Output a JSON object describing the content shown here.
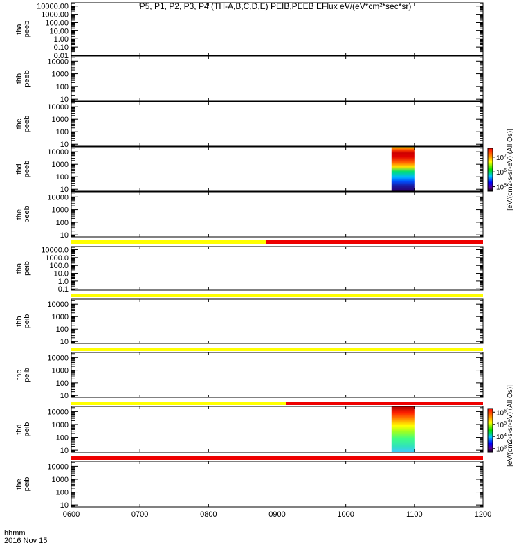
{
  "title": "P5, P1, P2, P3, P4 (TH-A,B,C,D,E) PEIB,PEEB EFlux eV/(eV*cm²*sec*sr)",
  "x_axis": {
    "ticks": [
      "0600",
      "0700",
      "0800",
      "0900",
      "1000",
      "1100",
      "1200"
    ],
    "label_line1": "hhmm",
    "label_line2": "2016 Nov 15"
  },
  "colorbars": [
    {
      "label": "[eV/(cm2-s-sr-eV) (All Qs)]",
      "ticks": [
        {
          "base": "10",
          "exp": "7",
          "value": 10000000
        },
        {
          "base": "10",
          "exp": "6",
          "value": 1000000
        },
        {
          "base": "10",
          "exp": "5",
          "value": 100000
        }
      ],
      "range": [
        50000,
        40000000
      ]
    },
    {
      "label": "[eV/(cm2-s-sr-eV) (All Qs)]",
      "ticks": [
        {
          "base": "10",
          "exp": "6",
          "value": 1000000
        },
        {
          "base": "10",
          "exp": "5",
          "value": 100000
        },
        {
          "base": "10",
          "exp": "4",
          "value": 10000
        },
        {
          "base": "10",
          "exp": "3",
          "value": 1000
        }
      ],
      "range": [
        500,
        2000000
      ]
    }
  ],
  "colors": {
    "flag_yellow": "#ffff00",
    "flag_red": "#ee0000"
  },
  "chart_data": [
    {
      "type": "heatmap",
      "probe": "tha",
      "product": "peeb",
      "ylabel": [
        "tha",
        "peeb"
      ],
      "yticks": [
        "10000.00",
        "1000.00",
        "100.00",
        "10.00",
        "1.00",
        "0.10",
        "0.01"
      ],
      "yscale": "log",
      "ylim": [
        0.01,
        25000
      ],
      "data": "none"
    },
    {
      "type": "heatmap",
      "probe": "thb",
      "product": "peeb",
      "ylabel": [
        "thb",
        "peeb"
      ],
      "yticks": [
        "10000",
        "1000",
        "100",
        "10"
      ],
      "yscale": "log",
      "ylim": [
        7,
        25000
      ],
      "data": "none"
    },
    {
      "type": "heatmap",
      "probe": "thc",
      "product": "peeb",
      "ylabel": [
        "thc",
        "peeb"
      ],
      "yticks": [
        "10000",
        "1000",
        "100",
        "10"
      ],
      "yscale": "log",
      "ylim": [
        7,
        25000
      ],
      "data": "none"
    },
    {
      "type": "heatmap",
      "probe": "thd",
      "product": "peeb",
      "ylabel": [
        "thd",
        "peeb"
      ],
      "yticks": [
        "10000",
        "1000",
        "100",
        "10"
      ],
      "yscale": "log",
      "ylim": [
        7,
        25000
      ],
      "data_time": [
        "1040",
        "1100"
      ],
      "data_energy": [
        7,
        25000
      ],
      "colorbar": 0
    },
    {
      "type": "heatmap",
      "probe": "the",
      "product": "peeb",
      "ylabel": [
        "the",
        "peeb"
      ],
      "yticks": [
        "10000",
        "1000",
        "100",
        "10"
      ],
      "yscale": "log",
      "ylim": [
        7,
        25000
      ],
      "data": "none"
    },
    {
      "type": "heatmap",
      "probe": "tha",
      "product": "peib",
      "ylabel": [
        "tha",
        "peib"
      ],
      "yticks": [
        "10000.0",
        "1000.0",
        "100.0",
        "10.0",
        "1.0",
        "0.1"
      ],
      "yscale": "log",
      "ylim": [
        0.07,
        25000
      ],
      "data": "none"
    },
    {
      "type": "heatmap",
      "probe": "thb",
      "product": "peib",
      "ylabel": [
        "thb",
        "peib"
      ],
      "yticks": [
        "10000",
        "1000",
        "100",
        "10"
      ],
      "yscale": "log",
      "ylim": [
        7,
        25000
      ],
      "data": "none"
    },
    {
      "type": "heatmap",
      "probe": "thc",
      "product": "peib",
      "ylabel": [
        "thc",
        "peib"
      ],
      "yticks": [
        "10000",
        "1000",
        "100",
        "10"
      ],
      "yscale": "log",
      "ylim": [
        7,
        25000
      ],
      "data": "none"
    },
    {
      "type": "heatmap",
      "probe": "thd",
      "product": "peib",
      "ylabel": [
        "thd",
        "peib"
      ],
      "yticks": [
        "10000",
        "1000",
        "100",
        "10"
      ],
      "yscale": "log",
      "ylim": [
        7,
        25000
      ],
      "data_time": [
        "1040",
        "1100"
      ],
      "data_energy": [
        7,
        25000
      ],
      "colorbar": 1
    },
    {
      "type": "heatmap",
      "probe": "the",
      "product": "peib",
      "ylabel": [
        "the",
        "peib"
      ],
      "yticks": [
        "10000",
        "1000",
        "100",
        "10"
      ],
      "yscale": "log",
      "ylim": [
        7,
        25000
      ],
      "data": "none"
    }
  ],
  "flag_bars": [
    {
      "segments": [
        {
          "from": "0600",
          "to": "0850",
          "color": "yellow"
        },
        {
          "from": "0850",
          "to": "1200",
          "color": "red"
        }
      ]
    },
    {
      "segments": [
        {
          "from": "0600",
          "to": "1200",
          "color": "yellow"
        }
      ]
    },
    {
      "segments": [
        {
          "from": "0600",
          "to": "1200",
          "color": "yellow"
        }
      ]
    },
    {
      "segments": [
        {
          "from": "0600",
          "to": "0908",
          "color": "yellow"
        },
        {
          "from": "0908",
          "to": "1200",
          "color": "red"
        }
      ]
    },
    {
      "segments": [
        {
          "from": "0600",
          "to": "1200",
          "color": "red"
        }
      ]
    }
  ]
}
